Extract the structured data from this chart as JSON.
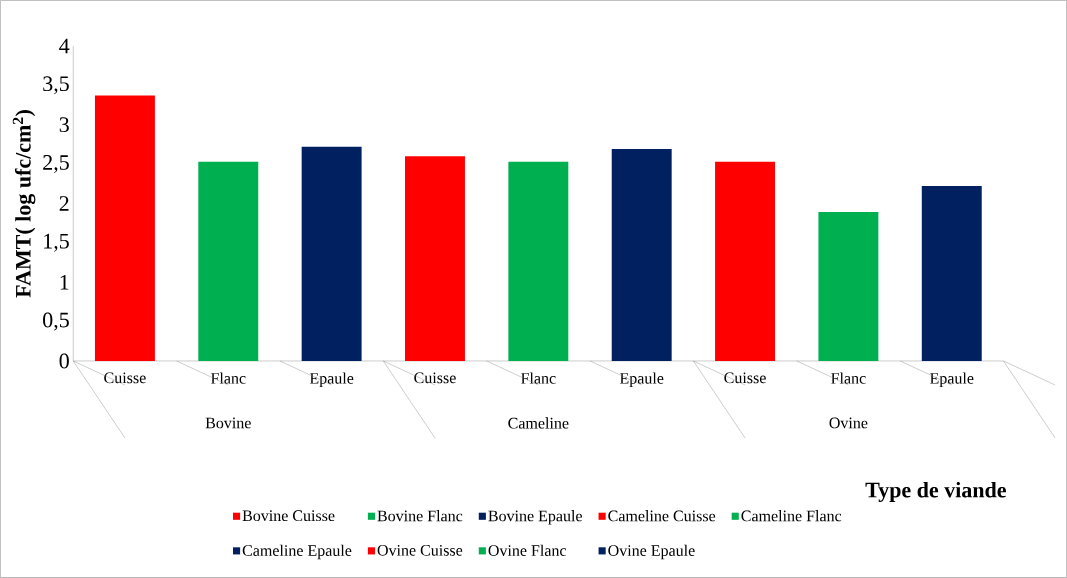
{
  "chart_data": {
    "type": "bar",
    "xlabel": "Type de viande",
    "ylabel": "FAMT( log ufc/cm$^{2}$)",
    "categories": [
      "Cuisse",
      "Flanc",
      "Epaule",
      "Cuisse",
      "Flanc",
      "Epaule",
      "Cuisse",
      "Flanc",
      "Epaule"
    ],
    "annotations": [
      "Bovine",
      "Cameline",
      "Ovine"
    ],
    "series": [
      {
        "name": "Bovine Cuisse",
        "color": "#ff0000",
        "values": [
          3.37,
          null,
          null,
          null,
          null,
          null,
          null,
          null,
          null
        ]
      },
      {
        "name": "Bovine Flanc",
        "color": "#00b050",
        "values": [
          null,
          2.53,
          null,
          null,
          null,
          null,
          null,
          null,
          null
        ]
      },
      {
        "name": "Bovine Epaule",
        "color": "#002060",
        "values": [
          null,
          null,
          2.72,
          null,
          null,
          null,
          null,
          null,
          null
        ]
      },
      {
        "name": "Cameline Cuisse",
        "color": "#ff0000",
        "values": [
          null,
          null,
          null,
          2.6,
          null,
          null,
          null,
          null,
          null
        ]
      },
      {
        "name": "Cameline Flanc",
        "color": "#00b050",
        "values": [
          null,
          null,
          null,
          null,
          2.53,
          null,
          null,
          null,
          null
        ]
      },
      {
        "name": "Cameline Epaule",
        "color": "#002060",
        "values": [
          null,
          null,
          null,
          null,
          null,
          2.69,
          null,
          null,
          null
        ]
      },
      {
        "name": "Ovine Cuisse",
        "color": "#ff0000",
        "values": [
          null,
          null,
          null,
          null,
          null,
          null,
          2.53,
          null,
          null
        ]
      },
      {
        "name": "Ovine Flanc",
        "color": "#00b050",
        "values": [
          null,
          null,
          null,
          null,
          null,
          null,
          null,
          1.89,
          null
        ]
      },
      {
        "name": "Ovine Epaule",
        "color": "#002060",
        "values": [
          null,
          null,
          null,
          null,
          null,
          null,
          null,
          null,
          2.22
        ]
      }
    ],
    "ylim": [
      0,
      4
    ],
    "yticks": [
      0,
      {
        "value": 0.5,
        "label": "0,5"
      },
      1,
      {
        "value": 1.5,
        "label": "1,5"
      },
      2,
      {
        "value": 2.5,
        "label": "2,5"
      },
      3,
      {
        "value": 3.5,
        "label": "3,5"
      },
      4
    ],
    "legend": "bottom"
  }
}
